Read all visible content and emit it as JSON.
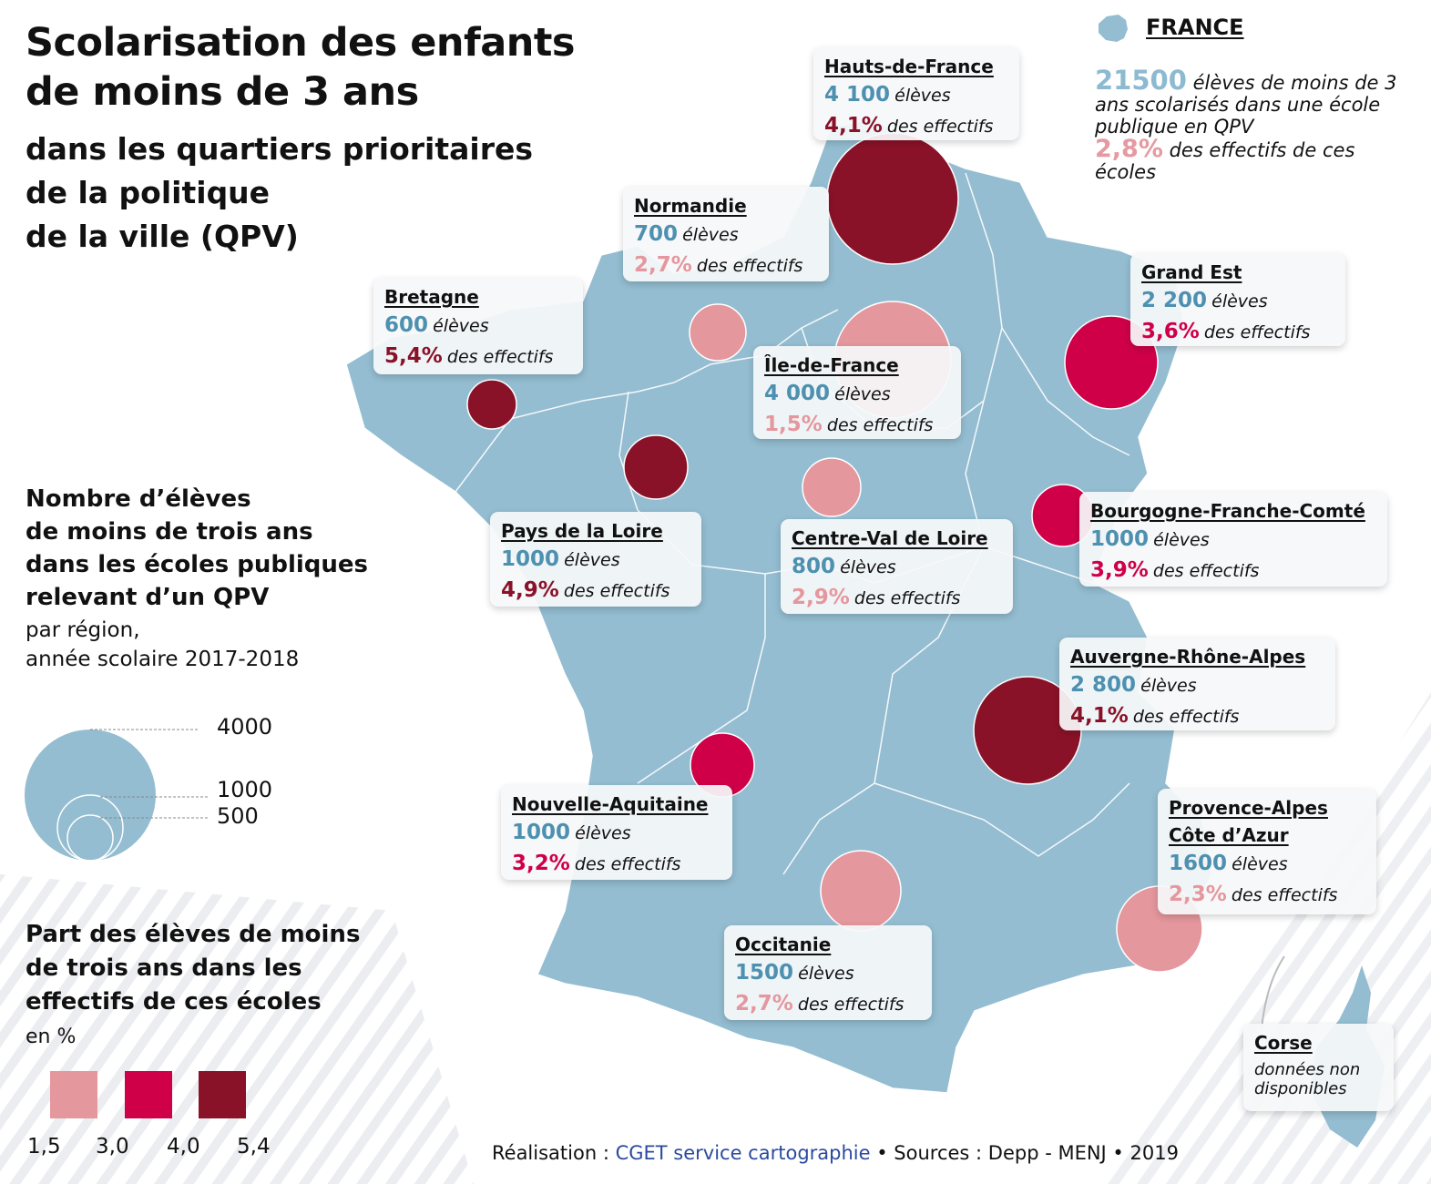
{
  "title": {
    "line1": "Scolarisation des enfants",
    "line2": "de moins de 3 ans",
    "line3": "dans les quartiers prioritaires",
    "line4": "de la politique",
    "line5": "de la ville (QPV)"
  },
  "legend_size": {
    "title_lines": [
      "Nombre d’élèves",
      "de moins de trois ans",
      "dans les écoles publiques",
      "relevant d’un QPV"
    ],
    "subtitle_lines": [
      "par région,",
      "année scolaire 2017-2018"
    ],
    "values": [
      "4000",
      "1000",
      "500"
    ]
  },
  "legend_color": {
    "title_lines": [
      "Part des élèves de moins",
      "de trois ans dans les",
      "effectifs de ces écoles"
    ],
    "unit": "en %",
    "breaks": [
      "1,5",
      "3,0",
      "4,0",
      "5,4"
    ],
    "colors": [
      "#e4979d",
      "#cf0048",
      "#8a1228"
    ]
  },
  "france": {
    "title": "FRANCE",
    "students_value": "21500",
    "students_text": " élèves de moins de 3 ans scolarisés dans une école publique en QPV",
    "share_value": "2,8%",
    "share_text": " des effectifs de ces écoles"
  },
  "regions": [
    {
      "name": "Hauts-de-France",
      "students": "4 100",
      "share": "4,1%",
      "class": 3
    },
    {
      "name": "Normandie",
      "students": "700",
      "share": "2,7%",
      "class": 1
    },
    {
      "name": "Bretagne",
      "students": "600",
      "share": "5,4%",
      "class": 3
    },
    {
      "name": "Grand Est",
      "students": "2 200",
      "share": "3,6%",
      "class": 2
    },
    {
      "name": "Île-de-France",
      "students": "4 000",
      "share": "1,5%",
      "class": 1
    },
    {
      "name": "Pays de la Loire",
      "students": "1000",
      "share": "4,9%",
      "class": 3
    },
    {
      "name": "Centre-Val de Loire",
      "students": "800",
      "share": "2,9%",
      "class": 1
    },
    {
      "name": "Bourgogne-Franche-Comté",
      "students": "1000",
      "share": "3,9%",
      "class": 2
    },
    {
      "name": "Auvergne-Rhône-Alpes",
      "students": "2 800",
      "share": "4,1%",
      "class": 3
    },
    {
      "name": "Nouvelle-Aquitaine",
      "students": "1000",
      "share": "3,2%",
      "class": 2
    },
    {
      "name": "Provence-Alpes",
      "name2": "Côte d’Azur",
      "students": "1600",
      "share": "2,3%",
      "class": 1
    },
    {
      "name": "Occitanie",
      "students": "1500",
      "share": "2,7%",
      "class": 1
    }
  ],
  "corse": {
    "name": "Corse",
    "note_line1": "données non",
    "note_line2": "disponibles"
  },
  "labels": {
    "students_unit": "élèves",
    "share_unit": "des effectifs"
  },
  "footer": {
    "prefix": "Réalisation : ",
    "credit": "CGET service cartographie",
    "sources": " • Sources : Depp - MENJ • 2019"
  },
  "colors": {
    "map": "#94bdd1",
    "number": "#4d90b0",
    "text": "#111111"
  }
}
